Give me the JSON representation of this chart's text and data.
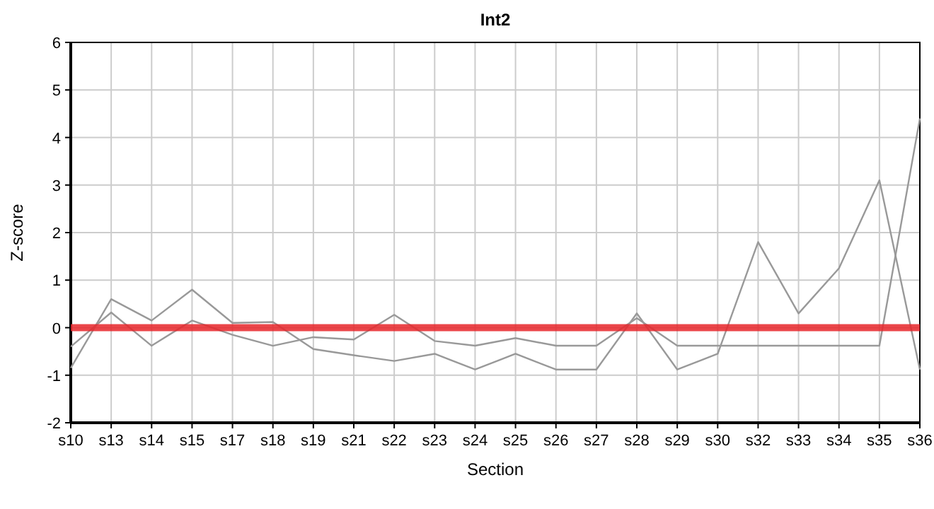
{
  "chart_data": {
    "type": "line",
    "title": "Int2",
    "xlabel": "Section",
    "ylabel": "Z-score",
    "categories": [
      "s10",
      "s13",
      "s14",
      "s15",
      "s17",
      "s18",
      "s19",
      "s21",
      "s22",
      "s23",
      "s24",
      "s25",
      "s26",
      "s27",
      "s28",
      "s29",
      "s30",
      "s32",
      "s33",
      "s34",
      "s35",
      "s36"
    ],
    "series": [
      {
        "color": "#999999",
        "values": [
          -0.85,
          0.6,
          0.15,
          0.8,
          0.1,
          0.12,
          -0.45,
          -0.58,
          -0.7,
          -0.55,
          -0.88,
          -0.55,
          -0.88,
          -0.88,
          0.3,
          -0.88,
          -0.55,
          1.8,
          0.3,
          1.25,
          3.1,
          -0.88
        ]
      },
      {
        "color": "#999999",
        "values": [
          -0.4,
          0.32,
          -0.38,
          0.15,
          -0.15,
          -0.38,
          -0.2,
          -0.25,
          0.27,
          -0.28,
          -0.38,
          -0.22,
          -0.38,
          -0.38,
          0.2,
          -0.38,
          -0.38,
          -0.38,
          -0.38,
          -0.38,
          -0.38,
          4.4
        ]
      }
    ],
    "ylim": [
      -2,
      6
    ],
    "yticks": [
      -2,
      -1,
      0,
      1,
      2,
      3,
      4,
      5,
      6
    ],
    "grid": true,
    "ref_lines": [
      {
        "axis": "y",
        "value": 0,
        "color": "#e8262b"
      }
    ]
  }
}
